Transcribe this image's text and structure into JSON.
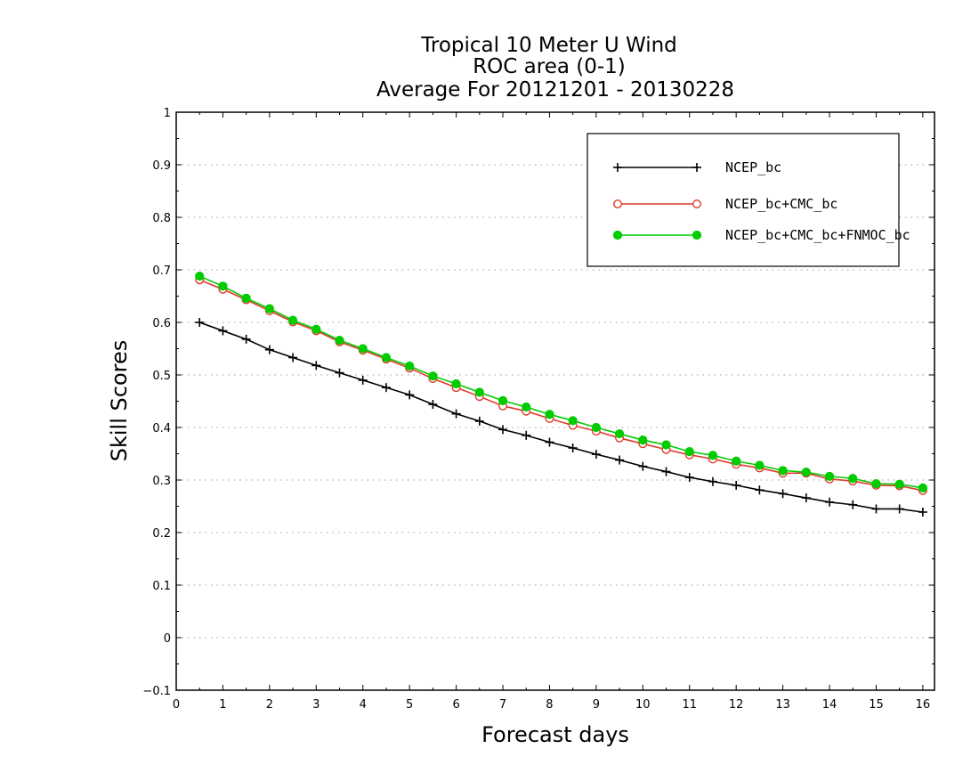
{
  "chart_data": {
    "type": "line",
    "title": [
      "Tropical 10 Meter U Wind",
      "ROC area (0-1)",
      "Average For 20121201 - 20130228"
    ],
    "xlabel": "Forecast days",
    "ylabel": "Skill Scores",
    "xlim": [
      0,
      16.25
    ],
    "ylim": [
      -0.1,
      1
    ],
    "xticks": [
      "0",
      "1",
      "2",
      "3",
      "4",
      "5",
      "6",
      "7",
      "8",
      "9",
      "10",
      "11",
      "12",
      "13",
      "14",
      "15",
      "16"
    ],
    "yticks": [
      "−0.1",
      "0",
      "0.1",
      "0.2",
      "0.3",
      "0.4",
      "0.5",
      "0.6",
      "0.7",
      "0.8",
      "0.9",
      "1"
    ],
    "grid": true,
    "legend_position": "top-right",
    "x": [
      0.5,
      1,
      1.5,
      2,
      2.5,
      3,
      3.5,
      4,
      4.5,
      5,
      5.5,
      6,
      6.5,
      7,
      7.5,
      8,
      8.5,
      9,
      9.5,
      10,
      10.5,
      11,
      11.5,
      12,
      12.5,
      13,
      13.5,
      14,
      14.5,
      15,
      15.5,
      16
    ],
    "series": [
      {
        "name": "NCEP_bc",
        "color": "#000000",
        "marker": "plus",
        "values": [
          0.6,
          0.584,
          0.568,
          0.548,
          0.533,
          0.518,
          0.504,
          0.49,
          0.476,
          0.462,
          0.444,
          0.426,
          0.412,
          0.396,
          0.385,
          0.372,
          0.361,
          0.349,
          0.338,
          0.326,
          0.316,
          0.305,
          0.297,
          0.29,
          0.281,
          0.274,
          0.266,
          0.258,
          0.253,
          0.245,
          0.245,
          0.239
        ]
      },
      {
        "name": "NCEP_bc+CMC_bc",
        "color": "#e03a2c",
        "marker": "open-circle",
        "values": [
          0.681,
          0.663,
          0.643,
          0.622,
          0.601,
          0.584,
          0.563,
          0.547,
          0.53,
          0.513,
          0.493,
          0.476,
          0.459,
          0.441,
          0.431,
          0.417,
          0.404,
          0.393,
          0.38,
          0.369,
          0.358,
          0.348,
          0.34,
          0.33,
          0.323,
          0.313,
          0.313,
          0.302,
          0.298,
          0.29,
          0.289,
          0.28
        ]
      },
      {
        "name": "NCEP_bc+CMC_bc+FNMOC_bc",
        "color": "#00cc00",
        "marker": "filled-circle",
        "values": [
          0.688,
          0.669,
          0.646,
          0.626,
          0.604,
          0.587,
          0.566,
          0.55,
          0.533,
          0.517,
          0.498,
          0.483,
          0.467,
          0.451,
          0.439,
          0.425,
          0.413,
          0.4,
          0.388,
          0.376,
          0.367,
          0.354,
          0.347,
          0.336,
          0.328,
          0.318,
          0.315,
          0.307,
          0.303,
          0.293,
          0.292,
          0.285
        ]
      }
    ]
  }
}
